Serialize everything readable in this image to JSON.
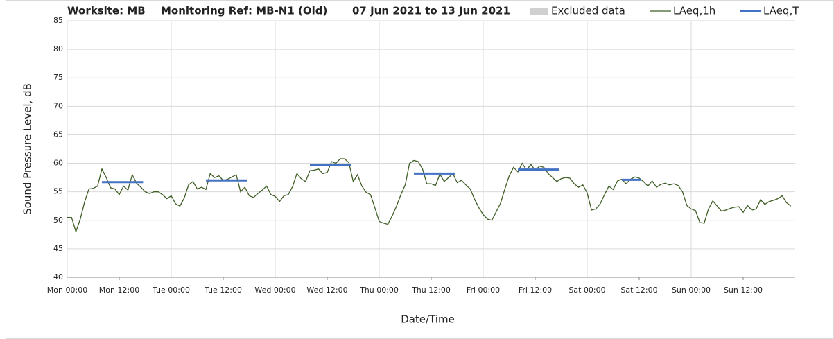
{
  "chart_data": {
    "type": "line",
    "title": "Worksite: MB",
    "subtitle": "Monitoring Ref: MB-N1 (Old)",
    "date_range": "07 Jun 2021 to 13 Jun 2021",
    "x_label": "Date/Time",
    "y_label": "Sound Pressure Level, dB",
    "xlim": [
      0,
      168
    ],
    "ylim": [
      40,
      85
    ],
    "yticks": [
      40,
      45,
      50,
      55,
      60,
      65,
      70,
      75,
      80,
      85
    ],
    "xticks": [
      {
        "value": 0,
        "label": "Mon 00:00"
      },
      {
        "value": 12,
        "label": "Mon 12:00"
      },
      {
        "value": 24,
        "label": "Tue 00:00"
      },
      {
        "value": 36,
        "label": "Tue 12:00"
      },
      {
        "value": 48,
        "label": "Wed 00:00"
      },
      {
        "value": 60,
        "label": "Wed 12:00"
      },
      {
        "value": 72,
        "label": "Thu 00:00"
      },
      {
        "value": 84,
        "label": "Thu 12:00"
      },
      {
        "value": 96,
        "label": "Fri 00:00"
      },
      {
        "value": 108,
        "label": "Fri 12:00"
      },
      {
        "value": 120,
        "label": "Sat 00:00"
      },
      {
        "value": 132,
        "label": "Sat 12:00"
      },
      {
        "value": 144,
        "label": "Sun 00:00"
      },
      {
        "value": 156,
        "label": "Sun 12:00"
      }
    ],
    "grid": true,
    "legend": [
      {
        "name": "Excluded data",
        "color": "#d0d0d0"
      }
    ],
    "series": [
      {
        "name": "LAeq,1h",
        "color": "#3f5e25",
        "x": [
          0,
          1,
          2,
          3,
          4,
          5,
          6,
          7,
          8,
          9,
          10,
          11,
          12,
          13,
          14,
          15,
          16,
          17,
          18,
          19,
          20,
          21,
          22,
          23,
          24,
          25,
          26,
          27,
          28,
          29,
          30,
          31,
          32,
          33,
          34,
          35,
          36,
          37,
          38,
          39,
          40,
          41,
          42,
          43,
          44,
          45,
          46,
          47,
          48,
          49,
          50,
          51,
          52,
          53,
          54,
          55,
          56,
          57,
          58,
          59,
          60,
          61,
          62,
          63,
          64,
          65,
          66,
          67,
          68,
          69,
          70,
          71,
          72,
          73,
          74,
          75,
          76,
          77,
          78,
          79,
          80,
          81,
          82,
          83,
          84,
          85,
          86,
          87,
          88,
          89,
          90,
          91,
          92,
          93,
          94,
          95,
          96,
          97,
          98,
          99,
          100,
          101,
          102,
          103,
          104,
          105,
          106,
          107,
          108,
          109,
          110,
          111,
          112,
          113,
          114,
          115,
          116,
          117,
          118,
          119,
          120,
          121,
          122,
          123,
          124,
          125,
          126,
          127,
          128,
          129,
          130,
          131,
          132,
          133,
          134,
          135,
          136,
          137,
          138,
          139,
          140,
          141,
          142,
          143,
          144,
          145,
          146,
          147,
          148,
          149,
          150,
          151,
          152,
          153,
          154,
          155,
          156,
          157,
          158,
          159,
          160,
          161,
          162,
          163,
          164,
          165,
          166,
          167
        ],
        "values": [
          50.5,
          50.5,
          48,
          50.2,
          53.2,
          55.5,
          55.6,
          56,
          59,
          57.5,
          55.7,
          55.5,
          54.5,
          56,
          55.3,
          58,
          56.5,
          55.8,
          55,
          54.7,
          55,
          55,
          54.5,
          53.8,
          54.3,
          52.9,
          52.5,
          53.9,
          56.2,
          56.8,
          55.5,
          55.8,
          55.4,
          58.2,
          57.5,
          57.8,
          57,
          57.2,
          57.6,
          58,
          55,
          55.8,
          54.3,
          54,
          54.7,
          55.3,
          56,
          54.5,
          54.2,
          53.3,
          54.3,
          54.5,
          55.9,
          58.2,
          57.3,
          56.8,
          58.7,
          58.8,
          59,
          58.2,
          58.4,
          60.3,
          60,
          60.8,
          60.8,
          60.1,
          56.8,
          58,
          56,
          54.9,
          54.5,
          52.2,
          49.8,
          49.5,
          49.3,
          50.8,
          52.5,
          54.5,
          56.2,
          60,
          60.5,
          60.3,
          59,
          56.4,
          56.4,
          56.1,
          58.1,
          56.8,
          57.5,
          58.2,
          56.6,
          57,
          56.2,
          55.5,
          53.7,
          52.2,
          51,
          50.2,
          50,
          51.5,
          53,
          55.5,
          57.8,
          59.3,
          58.5,
          60,
          58.8,
          59.8,
          58.8,
          59.5,
          59.3,
          58.2,
          57.5,
          56.8,
          57.3,
          57.5,
          57.4,
          56.4,
          55.8,
          56.2,
          54.8,
          51.8,
          52,
          52.9,
          54.5,
          56,
          55.4,
          56.9,
          57.2,
          56.4,
          57.2,
          57.6,
          57.4,
          56.8,
          56,
          56.9,
          55.8,
          56.3,
          56.5,
          56.2,
          56.4,
          56.1,
          55,
          52.6,
          52,
          51.7,
          49.6,
          49.5,
          52,
          53.4,
          52.5,
          51.6,
          51.8,
          52.1,
          52.3,
          52.4,
          51.4,
          52.6,
          51.8,
          52,
          53.6,
          52.8,
          53.3,
          53.5,
          53.8,
          54.3,
          53.1,
          52.5
        ]
      },
      {
        "name": "LAeq,T",
        "color": "#4472c4",
        "x": [
          8,
          17.5,
          null,
          32,
          41.5,
          null,
          56,
          65.5,
          null,
          80,
          89.5,
          null,
          104,
          113.5,
          null,
          128,
          132.5
        ],
        "values": [
          56.7,
          56.7,
          null,
          57,
          57,
          null,
          59.7,
          59.7,
          null,
          58.2,
          58.2,
          null,
          58.9,
          58.9,
          null,
          57.1,
          57.1
        ]
      }
    ]
  }
}
